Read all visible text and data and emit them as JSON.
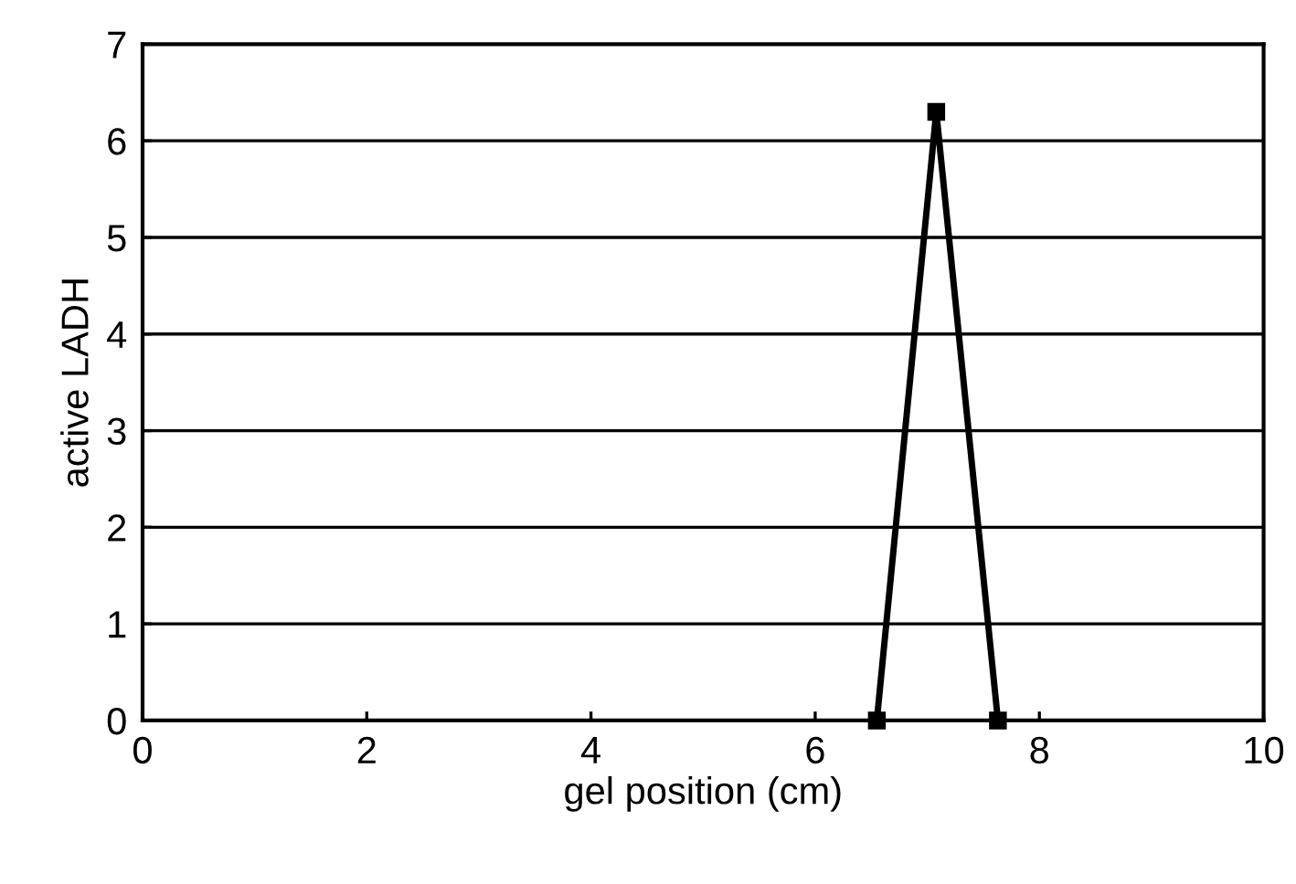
{
  "chart_data": {
    "type": "line",
    "xlabel": "gel position (cm)",
    "ylabel": "active LADH",
    "x": [
      6.55,
      7.08,
      7.63
    ],
    "values": [
      0,
      6.3,
      0
    ],
    "color": "#000000",
    "marker": "square",
    "line_style": "solid",
    "xlim": [
      0,
      10
    ],
    "xticks": [
      0,
      2,
      4,
      6,
      8,
      10
    ],
    "ylim": [
      0,
      7
    ],
    "yticks": [
      0,
      1,
      2,
      3,
      4,
      5,
      6,
      7
    ],
    "grid": "y"
  }
}
